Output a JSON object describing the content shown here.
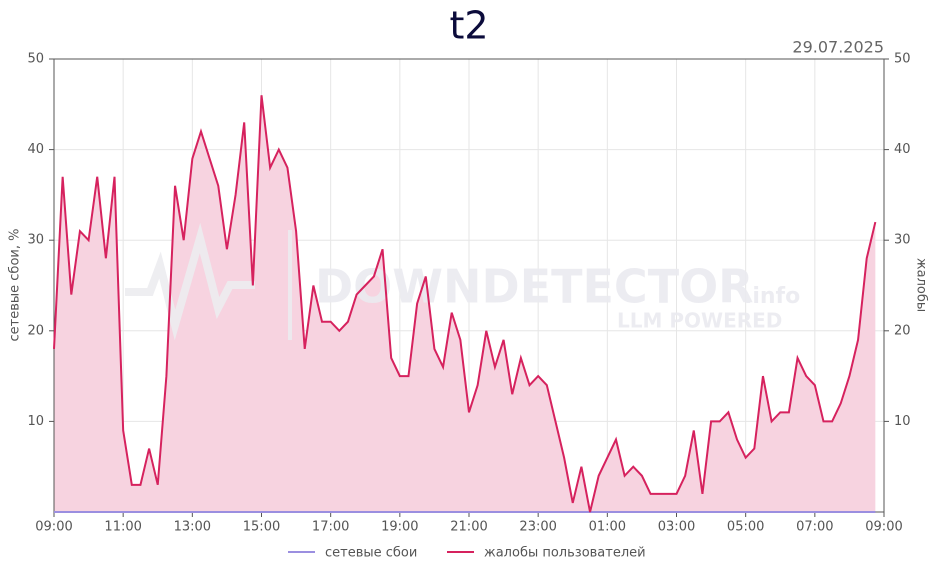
{
  "chart_data": {
    "type": "line",
    "title": "t2",
    "subtitle": "29.07.2025",
    "ylabel": "сетевые сбои, %",
    "y2label": "жалобы",
    "watermark": {
      "text": "DOWNDETECTOR",
      "suffix": ".info",
      "tagline": "LLM POWERED"
    },
    "x": [
      0,
      0.25,
      0.5,
      0.75,
      1,
      1.25,
      1.5,
      1.75,
      2,
      2.25,
      2.5,
      2.75,
      3,
      3.25,
      3.5,
      3.75,
      4,
      4.25,
      4.5,
      4.75,
      5,
      5.25,
      5.5,
      5.75,
      6,
      6.25,
      6.5,
      6.75,
      7,
      7.25,
      7.5,
      7.75,
      8,
      8.25,
      8.5,
      8.75,
      9,
      9.25,
      9.5,
      9.75,
      10,
      10.25,
      10.5,
      10.75,
      11,
      11.25,
      11.5,
      11.75,
      12,
      12.25,
      12.5,
      12.75,
      13,
      13.25,
      13.5,
      13.75,
      14,
      14.25,
      14.5,
      14.75,
      15,
      15.25,
      15.5,
      15.75,
      16,
      16.25,
      16.5,
      16.75,
      17,
      17.25,
      17.5,
      17.75,
      18,
      18.25,
      18.5,
      18.75,
      19,
      19.25,
      19.5,
      19.75,
      20,
      20.25,
      20.5,
      20.75,
      21,
      21.25,
      21.5,
      21.75,
      22,
      22.25,
      22.5,
      22.75,
      23,
      23.25,
      23.5,
      23.75
    ],
    "series": [
      {
        "name": "сетевые сбои",
        "color": "#9b8fe0",
        "axis": "y",
        "area": false,
        "values": [
          0,
          0,
          0,
          0,
          0,
          0,
          0,
          0,
          0,
          0,
          0,
          0,
          0,
          0,
          0,
          0,
          0,
          0,
          0,
          0,
          0,
          0,
          0,
          0,
          0,
          0,
          0,
          0,
          0,
          0,
          0,
          0,
          0,
          0,
          0,
          0,
          0,
          0,
          0,
          0,
          0,
          0,
          0,
          0,
          0,
          0,
          0,
          0,
          0,
          0,
          0,
          0,
          0,
          0,
          0,
          0,
          0,
          0,
          0,
          0,
          0,
          0,
          0,
          0,
          0,
          0,
          0,
          0,
          0,
          0,
          0,
          0,
          0,
          0,
          0,
          0,
          0,
          0,
          0,
          0,
          0,
          0,
          0,
          0,
          0,
          0,
          0,
          0,
          0,
          0,
          0,
          0,
          0,
          0,
          0,
          0
        ]
      },
      {
        "name": "жалобы пользователей",
        "color": "#d6225e",
        "axis": "y2",
        "area": true,
        "area_color": "#f7d3e0",
        "values": [
          18,
          37,
          24,
          31,
          30,
          37,
          28,
          37,
          9,
          3,
          3,
          7,
          3,
          15,
          36,
          30,
          39,
          42,
          39,
          36,
          29,
          35,
          43,
          25,
          46,
          38,
          40,
          38,
          31,
          18,
          25,
          21,
          21,
          20,
          21,
          24,
          25,
          26,
          29,
          17,
          15,
          15,
          23,
          26,
          18,
          16,
          22,
          19,
          11,
          14,
          20,
          16,
          19,
          13,
          17,
          14,
          15,
          14,
          10,
          6,
          1,
          5,
          0,
          4,
          6,
          8,
          4,
          5,
          4,
          2,
          2,
          2,
          2,
          4,
          9,
          2,
          10,
          10,
          11,
          8,
          6,
          7,
          15,
          10,
          11,
          11,
          17,
          15,
          14,
          10,
          10,
          12,
          15,
          19,
          28,
          32
        ]
      }
    ],
    "xlim": [
      0,
      24
    ],
    "xticks": [
      {
        "value": 0,
        "label": "09:00"
      },
      {
        "value": 2,
        "label": "11:00"
      },
      {
        "value": 4,
        "label": "13:00"
      },
      {
        "value": 6,
        "label": "15:00"
      },
      {
        "value": 8,
        "label": "17:00"
      },
      {
        "value": 10,
        "label": "19:00"
      },
      {
        "value": 12,
        "label": "21:00"
      },
      {
        "value": 14,
        "label": "23:00"
      },
      {
        "value": 16,
        "label": "01:00"
      },
      {
        "value": 18,
        "label": "03:00"
      },
      {
        "value": 20,
        "label": "05:00"
      },
      {
        "value": 22,
        "label": "07:00"
      },
      {
        "value": 24,
        "label": "09:00"
      }
    ],
    "ylim": [
      0,
      50
    ],
    "yticks": [
      10,
      20,
      30,
      40,
      50
    ],
    "y2lim": [
      0,
      50
    ],
    "y2ticks": [
      10,
      20,
      30,
      40,
      50
    ],
    "grid": true
  }
}
